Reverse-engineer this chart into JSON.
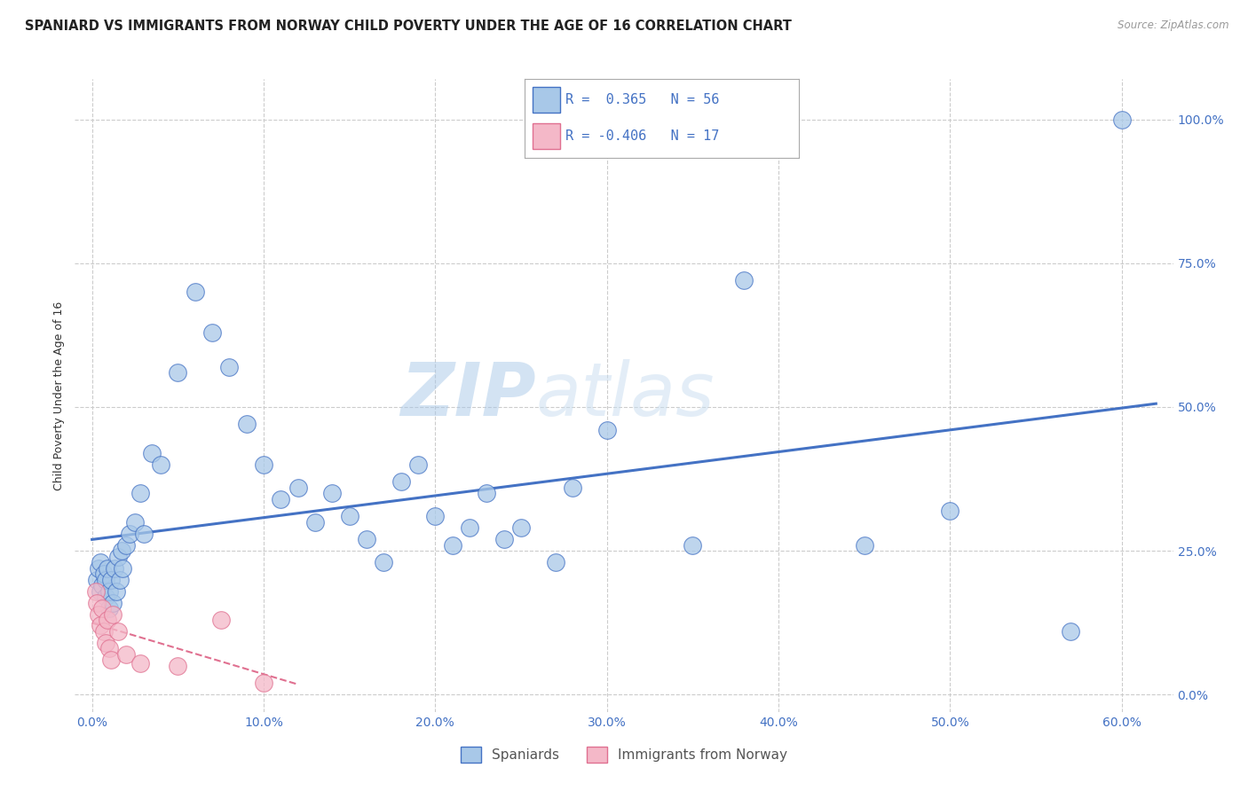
{
  "title": "SPANIARD VS IMMIGRANTS FROM NORWAY CHILD POVERTY UNDER THE AGE OF 16 CORRELATION CHART",
  "source": "Source: ZipAtlas.com",
  "ylabel": "Child Poverty Under the Age of 16",
  "x_ticks": [
    0.0,
    10.0,
    20.0,
    30.0,
    40.0,
    50.0,
    60.0
  ],
  "y_ticks": [
    0.0,
    25.0,
    50.0,
    75.0,
    100.0
  ],
  "xlim": [
    -1.0,
    63.0
  ],
  "ylim": [
    -3.0,
    107.0
  ],
  "r_blue": 0.365,
  "n_blue": 56,
  "r_pink": -0.406,
  "n_pink": 17,
  "blue_color": "#a8c8e8",
  "pink_color": "#f4b8c8",
  "blue_line_color": "#4472c4",
  "pink_line_color": "#e07090",
  "watermark_zip": "ZIP",
  "watermark_atlas": "atlas",
  "legend_label_blue": "Spaniards",
  "legend_label_pink": "Immigrants from Norway",
  "blue_x": [
    0.3,
    0.4,
    0.5,
    0.5,
    0.6,
    0.7,
    0.8,
    0.8,
    0.9,
    1.0,
    1.0,
    1.1,
    1.2,
    1.3,
    1.4,
    1.5,
    1.6,
    1.7,
    1.8,
    2.0,
    2.2,
    2.5,
    2.8,
    3.0,
    3.5,
    4.0,
    5.0,
    6.0,
    7.0,
    8.0,
    9.0,
    10.0,
    11.0,
    12.0,
    13.0,
    14.0,
    15.0,
    16.0,
    17.0,
    18.0,
    19.0,
    20.0,
    21.0,
    22.0,
    23.0,
    24.0,
    25.0,
    27.0,
    28.0,
    30.0,
    35.0,
    38.0,
    45.0,
    50.0,
    57.0,
    60.0
  ],
  "blue_y": [
    20.0,
    22.0,
    18.0,
    23.0,
    19.0,
    21.0,
    17.0,
    20.0,
    22.0,
    15.0,
    18.0,
    20.0,
    16.0,
    22.0,
    18.0,
    24.0,
    20.0,
    25.0,
    22.0,
    26.0,
    28.0,
    30.0,
    35.0,
    28.0,
    42.0,
    40.0,
    56.0,
    70.0,
    63.0,
    57.0,
    47.0,
    40.0,
    34.0,
    36.0,
    30.0,
    35.0,
    31.0,
    27.0,
    23.0,
    37.0,
    40.0,
    31.0,
    26.0,
    29.0,
    35.0,
    27.0,
    29.0,
    23.0,
    36.0,
    46.0,
    26.0,
    72.0,
    26.0,
    32.0,
    11.0,
    100.0
  ],
  "pink_x": [
    0.2,
    0.3,
    0.4,
    0.5,
    0.6,
    0.7,
    0.8,
    0.9,
    1.0,
    1.1,
    1.2,
    1.5,
    2.0,
    2.8,
    5.0,
    7.5,
    10.0
  ],
  "pink_y": [
    18.0,
    16.0,
    14.0,
    12.0,
    15.0,
    11.0,
    9.0,
    13.0,
    8.0,
    6.0,
    14.0,
    11.0,
    7.0,
    5.5,
    5.0,
    13.0,
    2.0
  ],
  "grid_color": "#cccccc",
  "background_color": "#ffffff",
  "title_fontsize": 10.5,
  "axis_label_fontsize": 9,
  "tick_fontsize": 10,
  "tick_color": "#4472c4"
}
